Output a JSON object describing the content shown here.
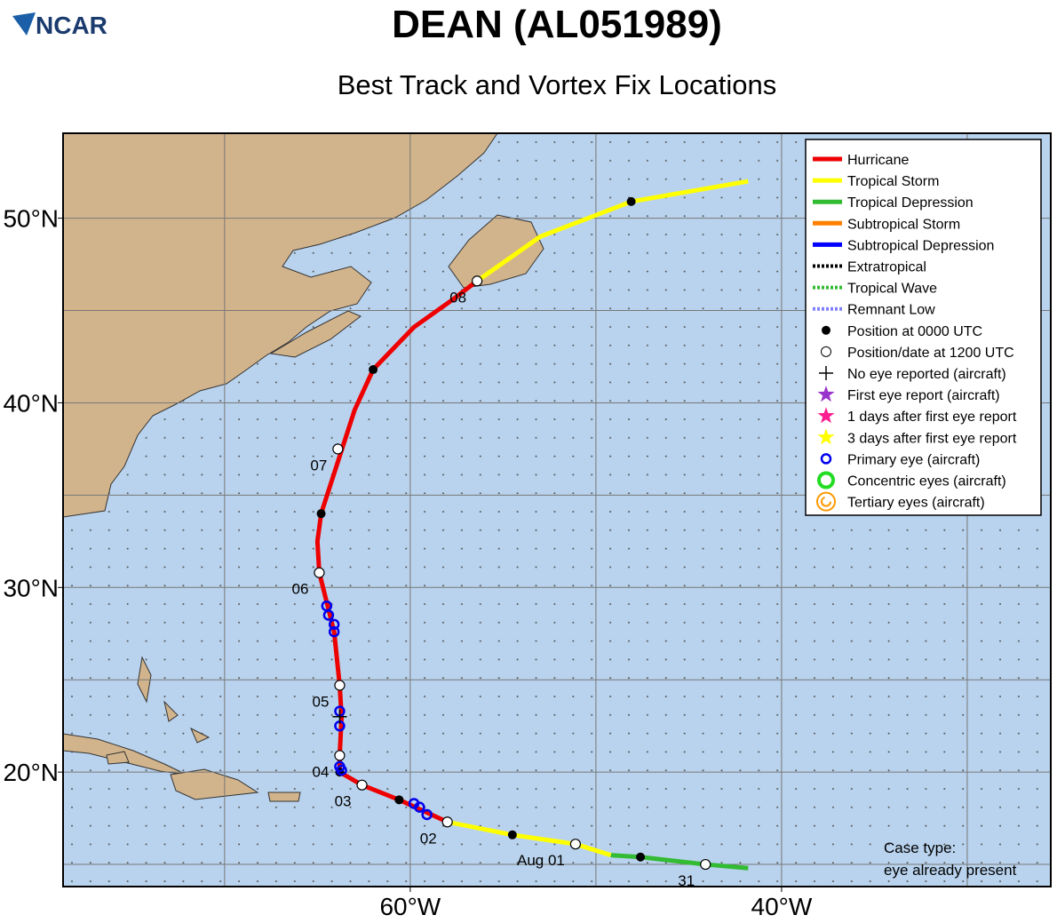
{
  "logo": "NCAR",
  "title": "DEAN (AL051989)",
  "subtitle": "Best Track and Vortex Fix Locations",
  "map": {
    "xlim": [
      -78.7,
      -25.5
    ],
    "ylim": [
      13.8,
      54.6
    ],
    "xticks": [
      {
        "value": -60,
        "label": "60°W"
      },
      {
        "value": -40,
        "label": "40°W"
      }
    ],
    "yticks": [
      {
        "value": 20,
        "label": "20°N"
      },
      {
        "value": 30,
        "label": "30°N"
      },
      {
        "value": 40,
        "label": "40°N"
      },
      {
        "value": 50,
        "label": "50°N"
      }
    ],
    "segments": [
      {
        "color": "#33bb33",
        "points": [
          [
            -41.8,
            14.8
          ],
          [
            -44.1,
            15.0
          ],
          [
            -47.6,
            15.4
          ],
          [
            -49.2,
            15.5
          ]
        ]
      },
      {
        "color": "#ffff00",
        "points": [
          [
            -49.2,
            15.5
          ],
          [
            -51.1,
            16.1
          ],
          [
            -54.5,
            16.6
          ],
          [
            -58.0,
            17.3
          ]
        ]
      },
      {
        "color": "#ee0000",
        "points": [
          [
            -58.0,
            17.3
          ],
          [
            -60.6,
            18.5
          ],
          [
            -62.6,
            19.3
          ],
          [
            -63.8,
            20.0
          ],
          [
            -63.8,
            20.9
          ],
          [
            -63.7,
            23.0
          ],
          [
            -63.8,
            24.7
          ],
          [
            -64.1,
            27.6
          ],
          [
            -64.9,
            30.8
          ],
          [
            -65.0,
            32.5
          ],
          [
            -64.8,
            34.0
          ],
          [
            -63.0,
            39.6
          ],
          [
            -62.0,
            41.8
          ],
          [
            -59.8,
            44.1
          ],
          [
            -57.7,
            45.6
          ],
          [
            -56.4,
            46.6
          ]
        ]
      },
      {
        "color": "#ffff00",
        "points": [
          [
            -56.4,
            46.6
          ],
          [
            -53.0,
            49.0
          ],
          [
            -48.1,
            50.9
          ],
          [
            -41.8,
            52.0
          ]
        ]
      }
    ],
    "positions_0000": [
      [
        -47.6,
        15.4
      ],
      [
        -54.5,
        16.6
      ],
      [
        -60.6,
        18.5
      ],
      [
        -63.8,
        20.0
      ],
      [
        -64.8,
        34.0
      ],
      [
        -62.0,
        41.8
      ],
      [
        -48.1,
        50.9
      ]
    ],
    "positions_1200": [
      {
        "lon": -44.1,
        "lat": 15.0,
        "label": "31"
      },
      {
        "lon": -51.1,
        "lat": 16.1,
        "label": "Aug 01"
      },
      {
        "lon": -58.0,
        "lat": 17.3,
        "label": "02"
      },
      {
        "lon": -62.6,
        "lat": 19.3,
        "label": "03"
      },
      {
        "lon": -63.8,
        "lat": 20.9,
        "label": "04"
      },
      {
        "lon": -63.8,
        "lat": 24.7,
        "label": "05"
      },
      {
        "lon": -64.9,
        "lat": 30.8,
        "label": "06"
      },
      {
        "lon": -63.9,
        "lat": 37.5,
        "label": "07"
      },
      {
        "lon": -56.4,
        "lat": 46.6,
        "label": "08"
      }
    ],
    "primary_eyes": [
      [
        -64.5,
        29.0
      ],
      [
        -64.4,
        28.5
      ],
      [
        -64.1,
        28.0
      ],
      [
        -64.1,
        27.6
      ],
      [
        -63.8,
        23.3
      ],
      [
        -63.8,
        22.5
      ],
      [
        -63.8,
        20.3
      ],
      [
        -63.7,
        20.1
      ],
      [
        -59.8,
        18.3
      ],
      [
        -59.5,
        18.1
      ],
      [
        -59.1,
        17.7
      ]
    ],
    "no_eye": [
      [
        -63.8,
        23.0
      ]
    ]
  },
  "legend": [
    {
      "label": "Hurricane",
      "color": "#ee0000"
    },
    {
      "label": "Tropical Storm",
      "color": "#ffff00"
    },
    {
      "label": "Tropical Depression",
      "color": "#33bb33"
    },
    {
      "label": "Subtropical Storm",
      "color": "#ff8000"
    },
    {
      "label": "Subtropical Depression",
      "color": "#0000ff"
    },
    {
      "label": "Extratropical",
      "color": "#000000"
    },
    {
      "label": "Tropical Wave",
      "color": "#33bb33"
    },
    {
      "label": "Remnant Low",
      "color": "#8080ff"
    },
    {
      "label": "Position at 0000 UTC"
    },
    {
      "label": "Position/date at 1200 UTC"
    },
    {
      "label": "No eye reported (aircraft)"
    },
    {
      "label": "First eye report (aircraft)"
    },
    {
      "label": "1 days after first eye report"
    },
    {
      "label": "3 days after first eye report"
    },
    {
      "label": "Primary eye (aircraft)"
    },
    {
      "label": "Concentric eyes (aircraft)"
    },
    {
      "label": "Tertiary eyes (aircraft)"
    }
  ],
  "case_type": [
    "Case type:",
    "eye already present"
  ]
}
